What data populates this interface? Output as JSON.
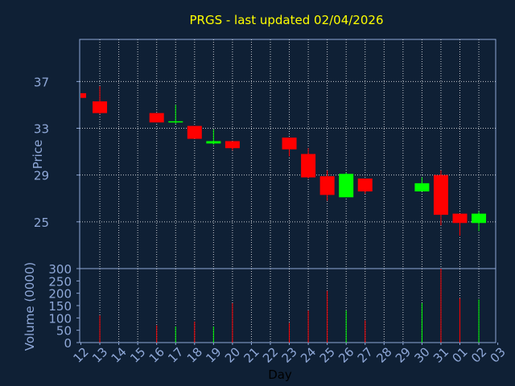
{
  "title": "PRGS - last updated 02/04/2026",
  "chart_data": {
    "type": "candlestick",
    "title": "PRGS - last updated 02/04/2026",
    "xlabel": "Day",
    "price_ylabel": "Price",
    "volume_ylabel": "Volume (0000)",
    "x_tick_labels": [
      "12",
      "13",
      "14",
      "15",
      "16",
      "17",
      "18",
      "19",
      "20",
      "21",
      "22",
      "23",
      "24",
      "25",
      "26",
      "27",
      "28",
      "29",
      "30",
      "31",
      "01",
      "02",
      "03"
    ],
    "price_ticks": [
      25,
      29,
      33,
      37
    ],
    "price_ylim": [
      21.0,
      40.6
    ],
    "volume_ticks": [
      0,
      50,
      100,
      150,
      200,
      250,
      300
    ],
    "volume_ylim": [
      0,
      300
    ],
    "up_color": "#00ff00",
    "down_color": "#ff0000",
    "grid": true,
    "candles": [
      {
        "x": "12",
        "open": 36.0,
        "high": 36.0,
        "low": 35.6,
        "close": 35.6,
        "volume": null
      },
      {
        "x": "13",
        "open": 35.3,
        "high": 36.6,
        "low": 34.2,
        "close": 34.3,
        "volume": 110
      },
      {
        "x": "16",
        "open": 34.3,
        "high": 34.3,
        "low": 33.5,
        "close": 33.5,
        "volume": 70
      },
      {
        "x": "17",
        "open": 33.5,
        "high": 35.0,
        "low": 33.4,
        "close": 33.6,
        "volume": 65
      },
      {
        "x": "18",
        "open": 33.2,
        "high": 33.2,
        "low": 32.1,
        "close": 32.1,
        "volume": 85
      },
      {
        "x": "19",
        "open": 31.7,
        "high": 32.9,
        "low": 31.6,
        "close": 31.9,
        "volume": 65
      },
      {
        "x": "20",
        "open": 31.9,
        "high": 31.9,
        "low": 31.1,
        "close": 31.3,
        "volume": 160
      },
      {
        "x": "23",
        "open": 32.2,
        "high": 32.2,
        "low": 30.6,
        "close": 31.2,
        "volume": 80
      },
      {
        "x": "24",
        "open": 30.8,
        "high": 31.3,
        "low": 28.7,
        "close": 28.8,
        "volume": 130
      },
      {
        "x": "25",
        "open": 28.9,
        "high": 29.4,
        "low": 26.8,
        "close": 27.3,
        "volume": 210
      },
      {
        "x": "26",
        "open": 27.1,
        "high": 29.2,
        "low": 27.1,
        "close": 29.1,
        "volume": 130
      },
      {
        "x": "27",
        "open": 28.7,
        "high": 28.7,
        "low": 27.4,
        "close": 27.6,
        "volume": 90
      },
      {
        "x": "30",
        "open": 27.6,
        "high": 28.8,
        "low": 27.6,
        "close": 28.3,
        "volume": 160
      },
      {
        "x": "31",
        "open": 29.0,
        "high": 29.4,
        "low": 24.7,
        "close": 25.6,
        "volume": 300
      },
      {
        "x": "01",
        "open": 25.7,
        "high": 25.7,
        "low": 23.8,
        "close": 24.9,
        "volume": 180
      },
      {
        "x": "02",
        "open": 24.9,
        "high": 25.9,
        "low": 24.2,
        "close": 25.7,
        "volume": 175
      }
    ]
  }
}
